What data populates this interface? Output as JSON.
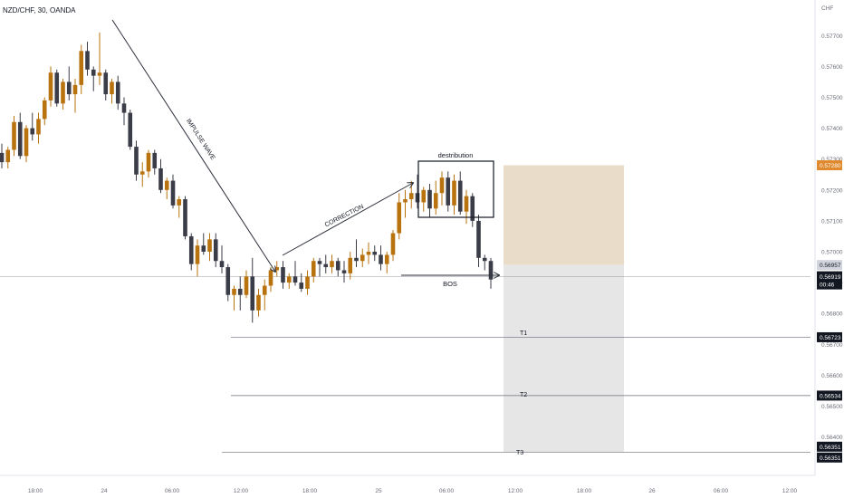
{
  "header": {
    "symbol": "NZD/CHF, 30, OANDA"
  },
  "colors": {
    "up": "#b8720e",
    "down": "#3a3d48",
    "profit": "#e9dcc8",
    "risk": "#e6e6e6",
    "axis_text": "#6a6d78",
    "accent": "#e08a2d",
    "dark_label": "#131722"
  },
  "chart_data": {
    "type": "candlestick",
    "title": "NZD/CHF, 30, OANDA",
    "currency": "CHF",
    "ylim": [
      0.5636,
      0.5771
    ],
    "y_ticks": [
      "0.57700",
      "0.57600",
      "0.57500",
      "0.57400",
      "0.57300",
      "0.57200",
      "0.57100",
      "0.57000",
      "0.56900",
      "0.56800",
      "0.56700",
      "0.56600",
      "0.56500",
      "0.56400"
    ],
    "x_ticks": [
      "18:00",
      "24",
      "06:00",
      "12:00",
      "18:00",
      "25",
      "06:00",
      "12:00",
      "18:00",
      "26",
      "06:00",
      "12:00"
    ],
    "candles": [
      [
        0.5732,
        0.5735,
        0.5727,
        0.5729
      ],
      [
        0.5729,
        0.5734,
        0.5727,
        0.5733
      ],
      [
        0.5733,
        0.5744,
        0.5731,
        0.5742
      ],
      [
        0.5742,
        0.5745,
        0.573,
        0.5731
      ],
      [
        0.5731,
        0.5741,
        0.5729,
        0.574
      ],
      [
        0.574,
        0.5745,
        0.5736,
        0.5738
      ],
      [
        0.5738,
        0.5745,
        0.5735,
        0.5743
      ],
      [
        0.5743,
        0.575,
        0.5741,
        0.5749
      ],
      [
        0.5749,
        0.576,
        0.5747,
        0.5758
      ],
      [
        0.5758,
        0.5759,
        0.5747,
        0.5748
      ],
      [
        0.5748,
        0.5756,
        0.5746,
        0.5755
      ],
      [
        0.5755,
        0.576,
        0.5749,
        0.5751
      ],
      [
        0.5751,
        0.5756,
        0.5745,
        0.5754
      ],
      [
        0.5754,
        0.5767,
        0.5751,
        0.5765
      ],
      [
        0.5765,
        0.5768,
        0.5757,
        0.5759
      ],
      [
        0.5759,
        0.576,
        0.5752,
        0.5757
      ],
      [
        0.5757,
        0.5771,
        0.5754,
        0.5758
      ],
      [
        0.5758,
        0.5759,
        0.5749,
        0.5751
      ],
      [
        0.5751,
        0.5756,
        0.5748,
        0.5755
      ],
      [
        0.5755,
        0.5757,
        0.5746,
        0.5748
      ],
      [
        0.5748,
        0.575,
        0.5741,
        0.5745
      ],
      [
        0.5745,
        0.5746,
        0.5733,
        0.5734
      ],
      [
        0.5734,
        0.5736,
        0.5723,
        0.5725
      ],
      [
        0.5725,
        0.5729,
        0.5721,
        0.5726
      ],
      [
        0.5726,
        0.5733,
        0.5724,
        0.5732
      ],
      [
        0.5732,
        0.5733,
        0.5725,
        0.5727
      ],
      [
        0.5727,
        0.573,
        0.5719,
        0.572
      ],
      [
        0.572,
        0.5724,
        0.5717,
        0.5723
      ],
      [
        0.5723,
        0.5725,
        0.5714,
        0.5715
      ],
      [
        0.5715,
        0.5718,
        0.5711,
        0.5717
      ],
      [
        0.5717,
        0.5718,
        0.5704,
        0.5705
      ],
      [
        0.5705,
        0.5706,
        0.5694,
        0.5696
      ],
      [
        0.5696,
        0.5704,
        0.5692,
        0.5702
      ],
      [
        0.5702,
        0.5706,
        0.5699,
        0.57
      ],
      [
        0.57,
        0.5706,
        0.5697,
        0.5704
      ],
      [
        0.5704,
        0.5706,
        0.5695,
        0.5697
      ],
      [
        0.5697,
        0.5702,
        0.5693,
        0.5695
      ],
      [
        0.5695,
        0.5696,
        0.5684,
        0.5686
      ],
      [
        0.5686,
        0.5689,
        0.5681,
        0.5688
      ],
      [
        0.5688,
        0.5692,
        0.5681,
        0.5686
      ],
      [
        0.5686,
        0.5694,
        0.5685,
        0.5692
      ],
      [
        0.5692,
        0.5698,
        0.5677,
        0.5681
      ],
      [
        0.5681,
        0.5688,
        0.5679,
        0.5686
      ],
      [
        0.5686,
        0.5691,
        0.5681,
        0.5689
      ],
      [
        0.5689,
        0.5695,
        0.5687,
        0.5694
      ],
      [
        0.5694,
        0.5697,
        0.5692,
        0.5695
      ],
      [
        0.5695,
        0.5697,
        0.5688,
        0.569
      ],
      [
        0.569,
        0.5693,
        0.5688,
        0.5692
      ],
      [
        0.5692,
        0.5697,
        0.5689,
        0.569
      ],
      [
        0.569,
        0.5693,
        0.5687,
        0.5688
      ],
      [
        0.5688,
        0.5694,
        0.5686,
        0.5692
      ],
      [
        0.5692,
        0.5698,
        0.569,
        0.5697
      ],
      [
        0.5697,
        0.5698,
        0.5692,
        0.5696
      ],
      [
        0.5696,
        0.5699,
        0.5693,
        0.5695
      ],
      [
        0.5695,
        0.5699,
        0.5693,
        0.5697
      ],
      [
        0.5697,
        0.5698,
        0.5692,
        0.5694
      ],
      [
        0.5694,
        0.5697,
        0.569,
        0.5693
      ],
      [
        0.5693,
        0.57,
        0.5691,
        0.5698
      ],
      [
        0.5698,
        0.5704,
        0.5695,
        0.5697
      ],
      [
        0.5697,
        0.5701,
        0.5695,
        0.5699
      ],
      [
        0.5699,
        0.5703,
        0.5696,
        0.57
      ],
      [
        0.57,
        0.5702,
        0.5697,
        0.5699
      ],
      [
        0.5699,
        0.5702,
        0.5694,
        0.5696
      ],
      [
        0.5696,
        0.57,
        0.5693,
        0.5699
      ],
      [
        0.5699,
        0.5707,
        0.5697,
        0.5706
      ],
      [
        0.5706,
        0.5719,
        0.5704,
        0.5716
      ],
      [
        0.5716,
        0.572,
        0.5711,
        0.5717
      ],
      [
        0.5717,
        0.5723,
        0.5714,
        0.5719
      ],
      [
        0.5719,
        0.5725,
        0.5714,
        0.5716
      ],
      [
        0.5716,
        0.5721,
        0.5713,
        0.572
      ],
      [
        0.572,
        0.5722,
        0.5711,
        0.5714
      ],
      [
        0.5714,
        0.5723,
        0.5712,
        0.5719
      ],
      [
        0.5719,
        0.5726,
        0.5715,
        0.5724
      ],
      [
        0.5724,
        0.5726,
        0.5713,
        0.5715
      ],
      [
        0.5715,
        0.5725,
        0.5712,
        0.5723
      ],
      [
        0.5723,
        0.5726,
        0.5712,
        0.5713
      ],
      [
        0.5713,
        0.572,
        0.5709,
        0.5718
      ],
      [
        0.5718,
        0.5719,
        0.5708,
        0.571
      ],
      [
        0.571,
        0.5712,
        0.5695,
        0.5698
      ],
      [
        0.5698,
        0.5699,
        0.5694,
        0.5697
      ],
      [
        0.5697,
        0.5698,
        0.5688,
        0.5691
      ]
    ],
    "labels": {
      "impulse": "IMPULSE WAVE",
      "correction": "CORRECTION",
      "distribution": "destribution",
      "bos": "BOS",
      "t1": "T1",
      "t2": "T2",
      "t3": "T3"
    },
    "levels": {
      "stop": 0.5728,
      "entry": 0.56957,
      "current": 0.56919,
      "t1": 0.56723,
      "t2": 0.56534,
      "t3": 0.56351
    },
    "price_badges": {
      "stop": "0.57280",
      "entry": "0.56957",
      "current": "0.56919",
      "countdown": "00:46",
      "t1": "0.56723",
      "t2": "0.56534",
      "t3a": "0.56351",
      "t3b": "0.56351"
    },
    "grid": false
  }
}
